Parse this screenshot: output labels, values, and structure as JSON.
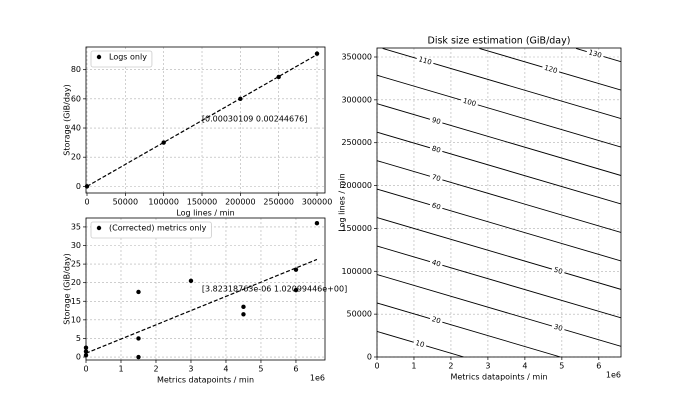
{
  "chart_data": [
    {
      "type": "scatter",
      "xlabel": "Log lines / min",
      "ylabel": "Storage (GiB/day)",
      "xlim": [
        -1300,
        310400
      ],
      "ylim": [
        -4.55,
        95.55
      ],
      "xticks": [
        0,
        50000,
        100000,
        150000,
        200000,
        250000,
        300000
      ],
      "yticks": [
        0,
        20,
        40,
        60,
        80
      ],
      "grid": true,
      "legend": "upper left",
      "annotation": "[0.00030109 0.00244676]",
      "series": [
        {
          "name": "Logs only",
          "color": "#000000",
          "marker": "o",
          "x": [
            0,
            100000,
            200000,
            250000,
            300000
          ],
          "values": [
            0,
            30,
            60,
            75,
            91
          ]
        },
        {
          "color": "#000000",
          "linestyle": "dashed",
          "x": [
            0,
            300000
          ],
          "values": [
            0.00245,
            90.33
          ]
        }
      ]
    },
    {
      "type": "scatter",
      "xlabel": "Metrics datapoints / min",
      "ylabel": "Storage (GiB/day)",
      "x_offset_label": "1e6",
      "xlim": [
        0,
        6830000
      ],
      "ylim": [
        -0.8,
        37.4
      ],
      "xticks": [
        {
          "value": 0,
          "label": "0"
        },
        {
          "value": 1000000,
          "label": "1"
        },
        {
          "value": 2000000,
          "label": "2"
        },
        {
          "value": 3000000,
          "label": "3"
        },
        {
          "value": 4000000,
          "label": "4"
        },
        {
          "value": 5000000,
          "label": "5"
        },
        {
          "value": 6000000,
          "label": "6"
        }
      ],
      "yticks": [
        0,
        5,
        10,
        15,
        20,
        25,
        30,
        35
      ],
      "grid": true,
      "legend": "upper left",
      "annotation": "[3.82318763e-06 1.02099446e+00]",
      "series": [
        {
          "name": "(Corrected) metrics only",
          "color": "#000000",
          "marker": "o",
          "x": [
            0,
            0,
            0,
            1500000,
            1500000,
            1500000,
            3000000,
            4500000,
            4500000,
            6000000,
            6000000,
            6600000
          ],
          "values": [
            0.5,
            1.5,
            2.5,
            17.5,
            5,
            0,
            20.5,
            13.5,
            11.5,
            23.5,
            18,
            36
          ]
        },
        {
          "color": "#000000",
          "linestyle": "dashed",
          "x": [
            0,
            6600000
          ],
          "values": [
            1.02,
            26.25
          ]
        }
      ]
    },
    {
      "type": "contour",
      "title": "Disk size estimation (GiB/day)",
      "xlabel": "Metrics datapoints / min",
      "ylabel": "Log lines / min",
      "x_offset_label": "1e6",
      "xlim": [
        0,
        6600000
      ],
      "ylim": [
        0,
        360500
      ],
      "xticks": [
        {
          "value": 0,
          "label": "0"
        },
        {
          "value": 1000000,
          "label": "1"
        },
        {
          "value": 2000000,
          "label": "2"
        },
        {
          "value": 3000000,
          "label": "3"
        },
        {
          "value": 4000000,
          "label": "4"
        },
        {
          "value": 5000000,
          "label": "5"
        },
        {
          "value": 6000000,
          "label": "6"
        }
      ],
      "yticks": [
        0,
        50000,
        100000,
        150000,
        200000,
        250000,
        300000,
        350000
      ],
      "grid": true,
      "color": "#000000",
      "contours": [
        {
          "level": 10,
          "x": [
            0,
            2349000
          ],
          "y": [
            29822,
            0
          ]
        },
        {
          "level": 20,
          "x": [
            0,
            4964000
          ],
          "y": [
            63034,
            0
          ]
        },
        {
          "level": 30,
          "x": [
            0,
            6600000
          ],
          "y": [
            96246,
            12445
          ]
        },
        {
          "level": 40,
          "x": [
            0,
            6600000
          ],
          "y": [
            129458,
            45657
          ]
        },
        {
          "level": 50,
          "x": [
            0,
            6600000
          ],
          "y": [
            162670,
            78869
          ]
        },
        {
          "level": 60,
          "x": [
            0,
            6600000
          ],
          "y": [
            195882,
            112081
          ]
        },
        {
          "level": 70,
          "x": [
            0,
            6600000
          ],
          "y": [
            229094,
            145293
          ]
        },
        {
          "level": 80,
          "x": [
            0,
            6600000
          ],
          "y": [
            262306,
            178505
          ]
        },
        {
          "level": 90,
          "x": [
            0,
            6600000
          ],
          "y": [
            295518,
            211717
          ]
        },
        {
          "level": 100,
          "x": [
            0,
            6600000
          ],
          "y": [
            328730,
            244929
          ]
        },
        {
          "level": 110,
          "x": [
            152950,
            6600000
          ],
          "y": [
            360000,
            278141
          ]
        },
        {
          "level": 120,
          "x": [
            2769000,
            6600000
          ],
          "y": [
            360000,
            311353
          ]
        },
        {
          "level": 130,
          "x": [
            5384000,
            6600000
          ],
          "y": [
            360000,
            344565
          ]
        }
      ]
    }
  ]
}
